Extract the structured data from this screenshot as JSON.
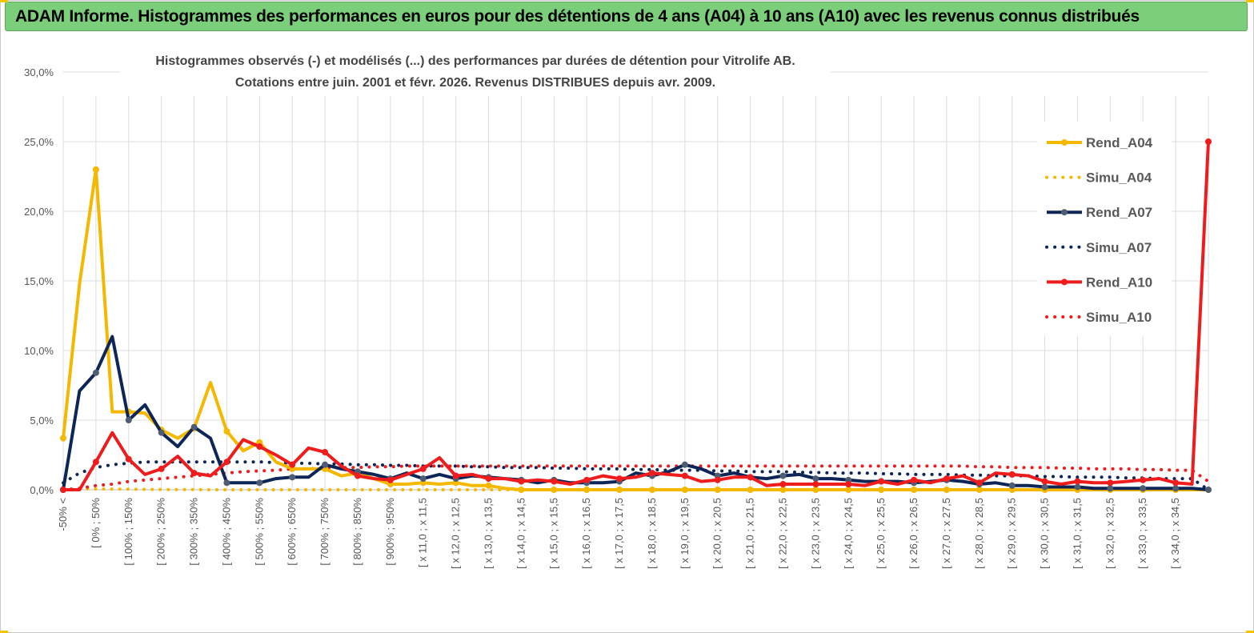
{
  "banner": {
    "title": "ADAM Informe. Histogrammes des performances en euros pour des détentions de 4 ans (A04) à 10 ans (A10) avec les revenus connus distribués"
  },
  "colors": {
    "banner_bg": "#7ccf7a",
    "a04": "#f5b800",
    "a07": "#0d2657",
    "a10": "#ee1c1c",
    "grid": "#dcdcdc"
  },
  "chart_data": {
    "type": "line",
    "title": [
      "Histogrammes observés (-) et modélisés (...) des performances par durées de détention pour Vitrolife AB.",
      "Cotations entre juin. 2001 et févr. 2026. Revenus DISTRIBUES depuis avr. 2009."
    ],
    "xlabel": "",
    "ylabel": "",
    "ylim": [
      0,
      30
    ],
    "yticks": [
      "0,0%",
      "5,0%",
      "10,0%",
      "15,0%",
      "20,0%",
      "25,0%",
      "30,0%"
    ],
    "grid": true,
    "legend_position": "right",
    "xtick_labels": [
      "-50% <",
      "[ 0% ; 50%",
      "[ 100% ; 150%",
      "[ 200% ; 250%",
      "[ 300% ; 350%",
      "[ 400% ; 450%",
      "[ 500% ; 550%",
      "[ 600% ; 650%",
      "[ 700% ; 750%",
      "[ 800% ; 850%",
      "[ 900% ; 950%",
      "[ x 11,0 ; x 11,5",
      "[ x 12,0 ; x 12,5",
      "[ x 13,0 ; x 13,5",
      "[ x 14,0 ; x 14,5",
      "[ x 15,0 ; x 15,5",
      "[ x 16,0 ; x 16,5",
      "[ x 17,0 ; x 17,5",
      "[ x 18,0 ; x 18,5",
      "[ x 19,0 ; x 19,5",
      "[ x 20,0 ; x 20,5",
      "[ x 21,0 ; x 21,5",
      "[ x 22,0 ; x 22,5",
      "[ x 23,0 ; x 23,5",
      "[ x 24,0 ; x 24,5",
      "[ x 25,0 ; x 25,5",
      "[ x 26,0 ; x 26,5",
      "[ x 27,0 ; x 27,5",
      "[ x 28,0 ; x 28,5",
      "[ x 29,0 ; x 29,5",
      "[ x 30,0 ; x 30,5",
      "[ x 31,0 ; x 31,5",
      "[ x 32,0 ; x 32,5",
      "[ x 33,0 ; x 33,5",
      "[ x 34,0 ; x 34,5"
    ],
    "series": [
      {
        "name": "Rend_A04",
        "style": "solid",
        "marker": true,
        "color": "#f5b800",
        "values": [
          3.7,
          14.8,
          23.0,
          5.6,
          5.6,
          5.5,
          4.3,
          3.7,
          4.4,
          7.7,
          4.2,
          2.8,
          3.4,
          2.0,
          1.5,
          1.5,
          1.5,
          1.0,
          1.2,
          0.8,
          0.4,
          0.4,
          0.5,
          0.4,
          0.5,
          0.3,
          0.3,
          0.1,
          0,
          0,
          0,
          0,
          0,
          0,
          0,
          0,
          0,
          0,
          0,
          0,
          0,
          0,
          0,
          0,
          0,
          0,
          0,
          0,
          0,
          0,
          0,
          0,
          0,
          0,
          0,
          0,
          0,
          0,
          0,
          0,
          0,
          0,
          0,
          0,
          0,
          0,
          0,
          0,
          0,
          0,
          0
        ]
      },
      {
        "name": "Simu_A04",
        "style": "dotted",
        "marker": false,
        "color": "#f5b800",
        "values": [
          0,
          0.05,
          0.06,
          0.05,
          0.04,
          0.03,
          0.02,
          0.01,
          0.01,
          0,
          0,
          0,
          0,
          0,
          0,
          0,
          0,
          0,
          0,
          0,
          0,
          0,
          0,
          0,
          0,
          0,
          0,
          0,
          0,
          0,
          0,
          0,
          0,
          0,
          0,
          0,
          0,
          0,
          0,
          0,
          0,
          0,
          0,
          0,
          0,
          0,
          0,
          0,
          0,
          0,
          0,
          0,
          0,
          0,
          0,
          0,
          0,
          0,
          0,
          0,
          0,
          0,
          0,
          0,
          0,
          0,
          0,
          0,
          0,
          0,
          0
        ]
      },
      {
        "name": "Rend_A07",
        "style": "solid",
        "marker": true,
        "color": "#0d2657",
        "values": [
          0.0,
          7.1,
          8.4,
          11.0,
          5.0,
          6.1,
          4.1,
          3.1,
          4.5,
          3.7,
          0.5,
          0.5,
          0.5,
          0.8,
          0.9,
          0.9,
          1.8,
          1.5,
          1.3,
          1.1,
          0.8,
          1.2,
          0.8,
          1.1,
          0.8,
          1.0,
          0.9,
          0.8,
          0.7,
          0.5,
          0.7,
          0.5,
          0.5,
          0.5,
          0.6,
          1.2,
          1.0,
          1.3,
          1.8,
          1.5,
          1.0,
          1.2,
          0.9,
          0.8,
          1.0,
          1.1,
          0.8,
          0.8,
          0.7,
          0.6,
          0.6,
          0.6,
          0.5,
          0.6,
          0.7,
          0.6,
          0.4,
          0.5,
          0.3,
          0.3,
          0.2,
          0.2,
          0.2,
          0.1,
          0.1,
          0.1,
          0.1,
          0.1,
          0.1,
          0.1,
          0.0
        ]
      },
      {
        "name": "Simu_A07",
        "style": "dotted",
        "marker": false,
        "color": "#0d2657",
        "values": [
          0.5,
          1.2,
          1.6,
          1.8,
          1.9,
          2.0,
          2.0,
          2.0,
          2.0,
          2.0,
          2.0,
          2.0,
          2.0,
          1.95,
          1.9,
          1.9,
          1.85,
          1.85,
          1.8,
          1.8,
          1.75,
          1.75,
          1.7,
          1.7,
          1.7,
          1.65,
          1.65,
          1.6,
          1.6,
          1.6,
          1.55,
          1.55,
          1.5,
          1.5,
          1.5,
          1.45,
          1.45,
          1.4,
          1.4,
          1.4,
          1.35,
          1.35,
          1.3,
          1.3,
          1.3,
          1.25,
          1.25,
          1.2,
          1.2,
          1.2,
          1.15,
          1.15,
          1.1,
          1.1,
          1.1,
          1.05,
          1.05,
          1.0,
          1.0,
          1.0,
          0.95,
          0.95,
          0.9,
          0.9,
          0.9,
          0.85,
          0.85,
          0.8,
          0.8,
          0.8,
          0.0
        ]
      },
      {
        "name": "Rend_A10",
        "style": "solid",
        "marker": true,
        "color": "#ee1c1c",
        "values": [
          0.0,
          0.0,
          2.0,
          4.1,
          2.2,
          1.1,
          1.5,
          2.4,
          1.2,
          1.0,
          2.0,
          3.6,
          3.1,
          2.5,
          1.8,
          3.0,
          2.7,
          1.7,
          1.0,
          0.8,
          0.7,
          1.1,
          1.5,
          2.3,
          1.0,
          1.1,
          0.8,
          0.8,
          0.6,
          0.7,
          0.6,
          0.4,
          0.7,
          1.0,
          0.8,
          0.9,
          1.2,
          1.1,
          1.0,
          0.6,
          0.7,
          0.9,
          0.9,
          0.3,
          0.4,
          0.4,
          0.4,
          0.4,
          0.4,
          0.3,
          0.6,
          0.4,
          0.7,
          0.5,
          0.8,
          1.0,
          0.5,
          1.2,
          1.1,
          1.0,
          0.6,
          0.4,
          0.6,
          0.5,
          0.5,
          0.6,
          0.7,
          0.8,
          0.5,
          0.4,
          25.0
        ]
      },
      {
        "name": "Simu_A10",
        "style": "dotted",
        "marker": false,
        "color": "#ee1c1c",
        "values": [
          0.0,
          0.1,
          0.3,
          0.4,
          0.6,
          0.7,
          0.8,
          0.9,
          1.0,
          1.1,
          1.2,
          1.3,
          1.35,
          1.4,
          1.5,
          1.5,
          1.55,
          1.6,
          1.6,
          1.65,
          1.65,
          1.7,
          1.7,
          1.7,
          1.7,
          1.7,
          1.7,
          1.7,
          1.7,
          1.7,
          1.7,
          1.7,
          1.7,
          1.7,
          1.7,
          1.7,
          1.7,
          1.7,
          1.7,
          1.7,
          1.7,
          1.7,
          1.7,
          1.7,
          1.7,
          1.7,
          1.7,
          1.7,
          1.7,
          1.7,
          1.7,
          1.7,
          1.7,
          1.7,
          1.7,
          1.7,
          1.65,
          1.65,
          1.6,
          1.6,
          1.6,
          1.55,
          1.55,
          1.5,
          1.5,
          1.5,
          1.45,
          1.45,
          1.4,
          1.4,
          0.6
        ]
      }
    ]
  }
}
